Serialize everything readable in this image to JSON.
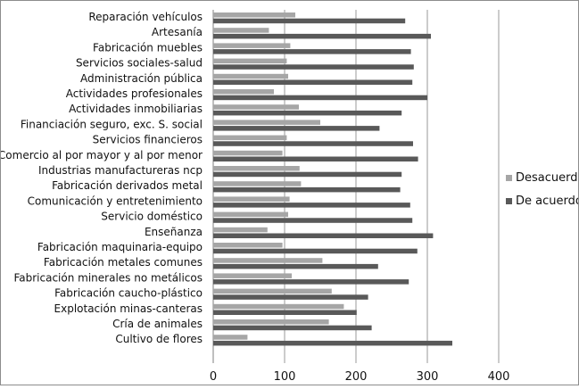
{
  "chart_data": {
    "type": "bar",
    "orientation": "horizontal",
    "title": "",
    "xlabel": "",
    "ylabel": "",
    "xlim": [
      0,
      400
    ],
    "x_ticks": [
      0,
      100,
      200,
      300,
      400
    ],
    "grid": true,
    "legend_position": "right",
    "categories": [
      "Reparación vehículos",
      "Artesanía",
      "Fabricación muebles",
      "Servicios sociales-salud",
      "Administración pública",
      "Actividades profesionales",
      "Actividades inmobiliarias",
      "Financiación seguro, exc. S. social",
      "Servicios financieros",
      "Comercio al por mayor y al por menor",
      "Industrias manufactureras ncp",
      "Fabricación derivados metal",
      "Comunicación y entretenimiento",
      "Servicio doméstico",
      "Enseñanza",
      "Fabricación maquinaria-equipo",
      "Fabricación metales comunes",
      "Fabricación minerales no metálicos",
      "Fabricación caucho-plástico",
      "Explotación minas-canteras",
      "Cría de animales",
      "Cultivo de flores"
    ],
    "series": [
      {
        "name": "Desacuerdo",
        "color": "#a6a6a6",
        "values": [
          115,
          78,
          108,
          103,
          105,
          85,
          120,
          150,
          103,
          97,
          121,
          123,
          107,
          105,
          76,
          97,
          153,
          110,
          166,
          183,
          162,
          48
        ]
      },
      {
        "name": "De acuerdo",
        "color": "#595959",
        "values": [
          269,
          305,
          277,
          281,
          279,
          300,
          264,
          233,
          280,
          287,
          264,
          262,
          276,
          279,
          308,
          286,
          231,
          274,
          217,
          201,
          222,
          335
        ]
      }
    ],
    "legend": [
      "Desacuerdo",
      "De acuerdo"
    ]
  }
}
